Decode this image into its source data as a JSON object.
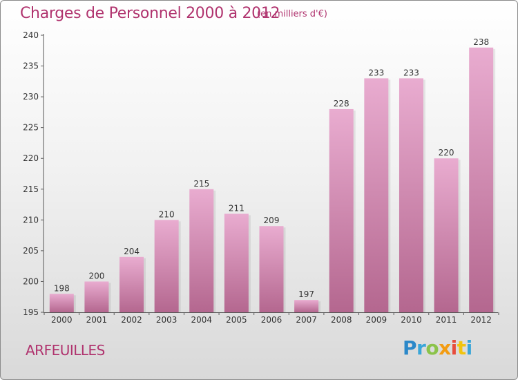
{
  "header": {
    "title": "Charges de Personnel 2000 à 2012",
    "subtitle": "(en milliers d'€)"
  },
  "footer": {
    "place": "ARFEUILLES",
    "logo_text": "Proxiti"
  },
  "colors": {
    "accent": "#b0336e",
    "bar_light": "#e6a6cc",
    "bar_dark": "#b56b92"
  },
  "chart_data": {
    "type": "bar",
    "categories": [
      "2000",
      "2001",
      "2002",
      "2003",
      "2004",
      "2005",
      "2006",
      "2007",
      "2008",
      "2009",
      "2010",
      "2011",
      "2012"
    ],
    "values": [
      198,
      200,
      204,
      210,
      215,
      211,
      209,
      197,
      228,
      233,
      233,
      220,
      238
    ],
    "ylim": [
      195,
      240
    ],
    "yticks": [
      195,
      200,
      205,
      210,
      215,
      220,
      225,
      230,
      235,
      240
    ],
    "grid": false
  }
}
